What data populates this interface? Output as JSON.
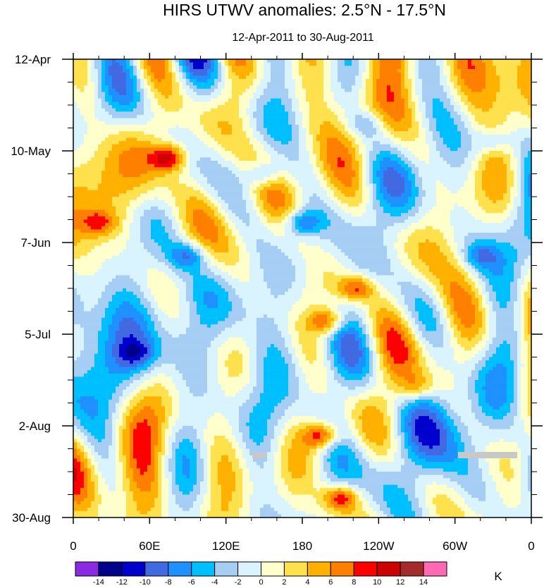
{
  "chart_data": {
    "type": "heatmap",
    "title": "HIRS UTWV anomalies: 2.5°N - 17.5°N",
    "subtitle": "12-Apr-2011 to 30-Aug-2011",
    "xlabel": "Longitude",
    "ylabel": "Date",
    "x_ticks": [
      "0",
      "60E",
      "120E",
      "180",
      "120W",
      "60W",
      "0"
    ],
    "x_range": [
      0,
      360
    ],
    "y_ticks": [
      "12-Apr",
      "10-May",
      "7-Jun",
      "5-Jul",
      "2-Aug",
      "30-Aug"
    ],
    "y_range_days": [
      0,
      140
    ],
    "colorbar": {
      "units": "K",
      "levels": [
        "-14",
        "-12",
        "-10",
        "-8",
        "-6",
        "-4",
        "-2",
        "0",
        "2",
        "4",
        "6",
        "8",
        "10",
        "12",
        "14"
      ],
      "colors": [
        "#8a2be2",
        "#00008b",
        "#0000cd",
        "#4169e1",
        "#1e90ff",
        "#00bfff",
        "#a6cef5",
        "#d9f4ff",
        "#ffffcc",
        "#ffe14d",
        "#ffb000",
        "#ff7f00",
        "#ff0000",
        "#cc0000",
        "#a52a2a",
        "#ff69b4"
      ]
    },
    "features": [
      {
        "lon": 75,
        "day": 30,
        "value": 12
      },
      {
        "lon": 20,
        "day": 50,
        "value": 8
      },
      {
        "lon": 200,
        "day": 80,
        "value": 10
      },
      {
        "lon": 195,
        "day": 115,
        "value": 12
      },
      {
        "lon": 210,
        "day": 134,
        "value": 12
      },
      {
        "lon": 222,
        "day": 70,
        "value": 10
      },
      {
        "lon": 150,
        "day": 35,
        "value": -8
      },
      {
        "lon": 180,
        "day": 50,
        "value": -10
      },
      {
        "lon": 90,
        "day": 60,
        "value": -8
      },
      {
        "lon": 230,
        "day": 20,
        "value": -6
      },
      {
        "lon": 330,
        "day": 25,
        "value": -6
      },
      {
        "lon": 320,
        "day": 60,
        "value": -6
      },
      {
        "lon": 270,
        "day": 100,
        "value": 6
      },
      {
        "lon": 50,
        "day": 90,
        "value": -6
      }
    ]
  }
}
